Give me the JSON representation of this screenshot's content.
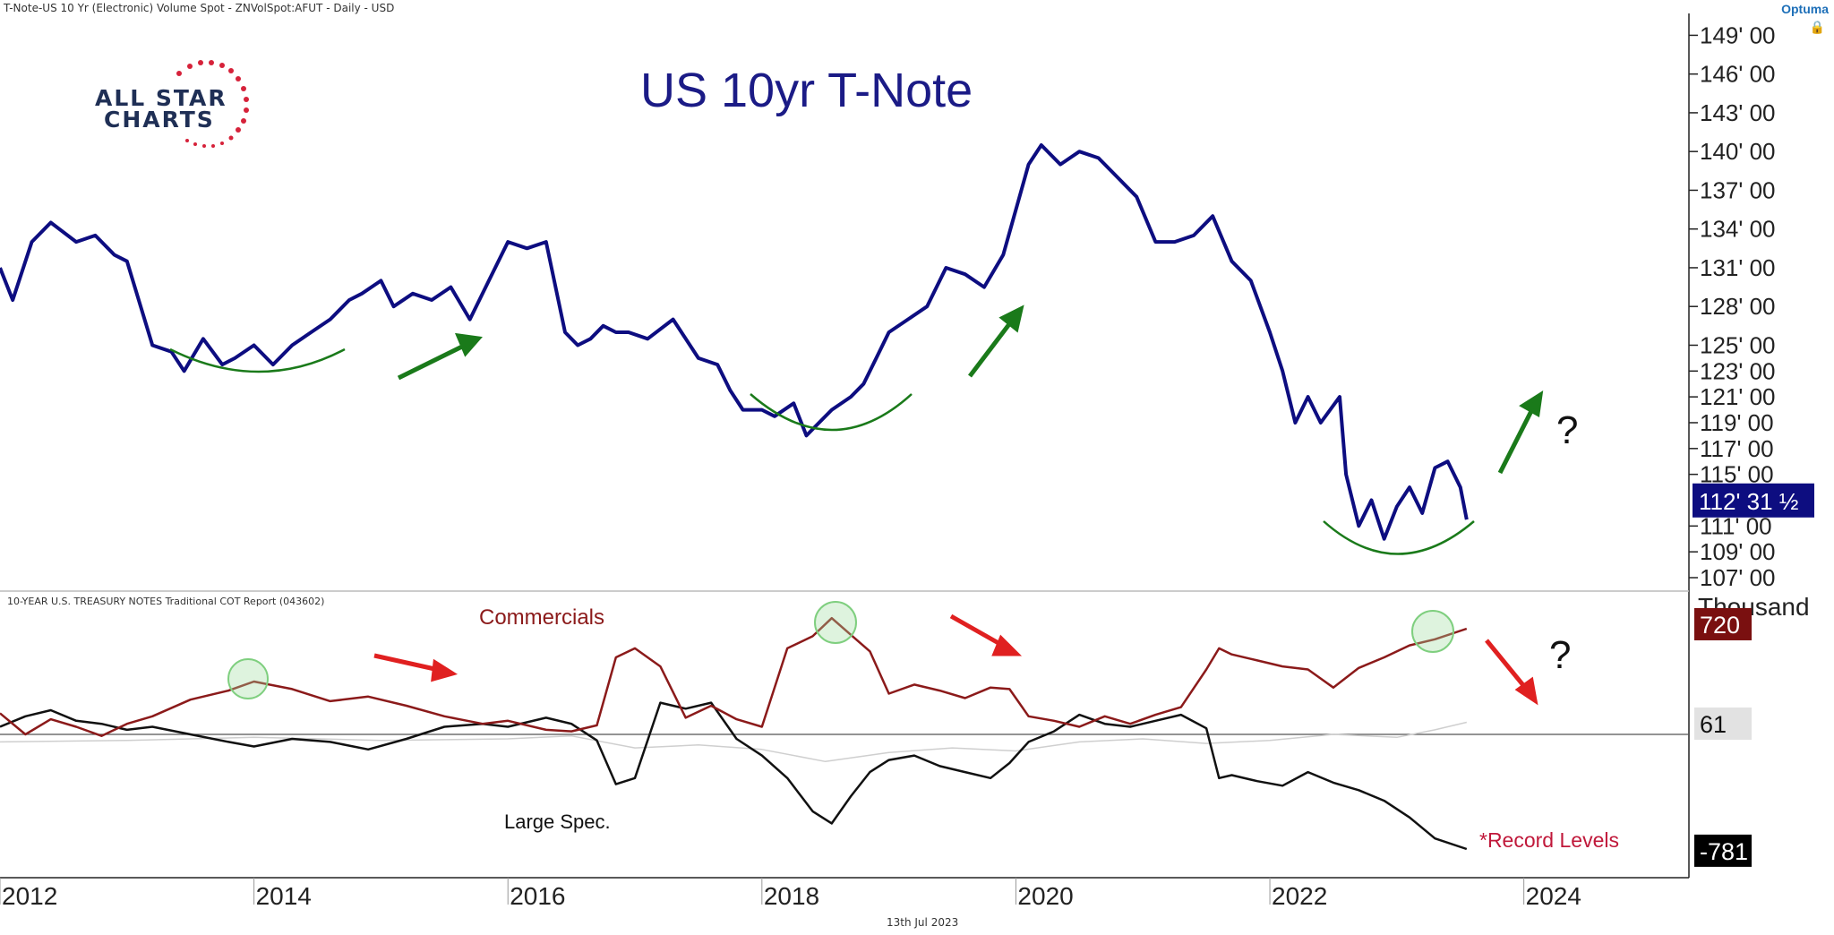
{
  "header": {
    "instrument": "T-Note-US 10 Yr (Electronic) Volume Spot - ZNVolSpot:AFUT - Daily - USD",
    "brand": "Optuma",
    "lock_icon": "lock-icon"
  },
  "logo": {
    "line1": "ALL STAR",
    "line2": "CHARTS"
  },
  "footer": {
    "date": "13th Jul 2023"
  },
  "annotations": {
    "question_top": "?",
    "question_bottom": "?",
    "record_levels": "*Record Levels",
    "commercials": "Commercials",
    "large_spec": "Large Spec."
  },
  "colors": {
    "price_line": "#0d0d80",
    "commercials": "#8b1a1a",
    "large_spec": "#111111",
    "small_traders": "#cfcfcf",
    "green_arrow": "#1a7a1a",
    "red_arrow": "#e02020",
    "highlight_circle": "#7fcf7f"
  },
  "chart_data": [
    {
      "type": "line",
      "title": "US 10yr T-Note",
      "ylim": [
        107,
        150
      ],
      "y_ticks": [
        "149' 00",
        "146' 00",
        "143' 00",
        "140' 00",
        "137' 00",
        "134' 00",
        "131' 00",
        "128' 00",
        "125' 00",
        "123' 00",
        "121' 00",
        "119' 00",
        "117' 00",
        "115' 00",
        "111' 00",
        "109' 00",
        "107' 00"
      ],
      "y_tick_values": [
        149,
        146,
        143,
        140,
        137,
        134,
        131,
        128,
        125,
        123,
        121,
        119,
        117,
        115,
        111,
        109,
        107
      ],
      "last_value_label": "112' 31 ½",
      "last_value": 112.98,
      "series": [
        {
          "x": [
            2012.0,
            2012.1,
            2012.25,
            2012.4,
            2012.6,
            2012.75,
            2012.9,
            2013.0,
            2013.2,
            2013.35,
            2013.45,
            2013.6,
            2013.75,
            2013.85,
            2014.0,
            2014.15,
            2014.3,
            2014.45,
            2014.6,
            2014.75,
            2014.85,
            2015.0,
            2015.1,
            2015.25,
            2015.4,
            2015.55,
            2015.7,
            2015.85,
            2016.0,
            2016.15,
            2016.3,
            2016.45,
            2016.55,
            2016.65,
            2016.75,
            2016.85,
            2016.95,
            2017.1,
            2017.3,
            2017.5,
            2017.65,
            2017.75,
            2017.85,
            2018.0,
            2018.1,
            2018.25,
            2018.35,
            2018.45,
            2018.55,
            2018.7,
            2018.8,
            2018.9,
            2019.0,
            2019.15,
            2019.3,
            2019.45,
            2019.6,
            2019.75,
            2019.9,
            2020.1,
            2020.2,
            2020.35,
            2020.5,
            2020.65,
            2020.8,
            2020.95,
            2021.1,
            2021.25,
            2021.4,
            2021.55,
            2021.7,
            2021.85,
            2022.0,
            2022.1,
            2022.2,
            2022.3,
            2022.4,
            2022.55,
            2022.6,
            2022.7,
            2022.8,
            2022.9,
            2023.0,
            2023.1,
            2023.2,
            2023.3,
            2023.4,
            2023.5,
            2023.55
          ],
          "y": [
            131,
            128.5,
            133,
            134.5,
            133,
            133.5,
            132,
            131.5,
            125,
            124.5,
            123,
            125.5,
            123.5,
            124,
            125,
            123.5,
            125,
            126,
            127,
            128.5,
            129,
            130,
            128,
            129,
            128.5,
            129.5,
            127,
            130,
            133,
            132.5,
            133,
            126,
            125,
            125.5,
            126.5,
            126,
            126,
            125.5,
            127,
            124,
            123.5,
            121.5,
            120,
            120,
            119.5,
            120.5,
            118,
            119,
            120,
            121,
            122,
            124,
            126,
            127,
            128,
            131,
            130.5,
            129.5,
            132,
            139,
            140.5,
            139,
            140,
            139.5,
            138,
            136.5,
            133,
            133,
            133.5,
            135,
            131.5,
            130,
            126,
            123,
            119,
            121,
            119,
            121,
            115,
            111,
            113,
            110,
            112.5,
            114,
            112,
            115.5,
            116,
            114,
            111.5
          ]
        }
      ]
    },
    {
      "type": "line",
      "title": "10-YEAR U.S. TREASURY NOTES Traditional COT Report (043602)",
      "ylabel": "Thousand",
      "y_tick_labels": [
        "720",
        "61",
        "-781"
      ],
      "y_tick_values": [
        720,
        61,
        -781
      ],
      "ylim": [
        -930,
        880
      ],
      "series": [
        {
          "name": "Commercials",
          "x": [
            2012.0,
            2012.2,
            2012.4,
            2012.6,
            2012.8,
            2013.0,
            2013.2,
            2013.5,
            2013.8,
            2014.0,
            2014.3,
            2014.6,
            2014.9,
            2015.2,
            2015.5,
            2015.8,
            2016.0,
            2016.3,
            2016.5,
            2016.7,
            2016.85,
            2017.0,
            2017.2,
            2017.4,
            2017.6,
            2017.8,
            2018.0,
            2018.2,
            2018.4,
            2018.55,
            2018.7,
            2018.85,
            2019.0,
            2019.2,
            2019.4,
            2019.6,
            2019.8,
            2019.95,
            2020.1,
            2020.3,
            2020.5,
            2020.7,
            2020.9,
            2021.1,
            2021.3,
            2021.5,
            2021.6,
            2021.7,
            2021.9,
            2022.1,
            2022.3,
            2022.5,
            2022.7,
            2022.9,
            2023.1,
            2023.3,
            2023.55
          ],
          "y": [
            130,
            -10,
            90,
            40,
            -20,
            60,
            110,
            220,
            280,
            340,
            290,
            210,
            240,
            180,
            110,
            60,
            80,
            20,
            10,
            50,
            500,
            560,
            440,
            100,
            180,
            90,
            40,
            560,
            640,
            760,
            650,
            540,
            260,
            320,
            280,
            230,
            300,
            290,
            110,
            80,
            40,
            110,
            60,
            120,
            170,
            420,
            560,
            520,
            480,
            440,
            420,
            300,
            430,
            500,
            580,
            620,
            690
          ]
        },
        {
          "name": "Large Spec.",
          "x": [
            2012.0,
            2012.2,
            2012.4,
            2012.6,
            2012.8,
            2013.0,
            2013.2,
            2013.5,
            2013.8,
            2014.0,
            2014.3,
            2014.6,
            2014.9,
            2015.2,
            2015.5,
            2015.8,
            2016.0,
            2016.3,
            2016.5,
            2016.7,
            2016.85,
            2017.0,
            2017.2,
            2017.4,
            2017.6,
            2017.8,
            2018.0,
            2018.2,
            2018.4,
            2018.55,
            2018.7,
            2018.85,
            2019.0,
            2019.2,
            2019.4,
            2019.6,
            2019.8,
            2019.95,
            2020.1,
            2020.3,
            2020.5,
            2020.7,
            2020.9,
            2021.1,
            2021.3,
            2021.5,
            2021.6,
            2021.7,
            2021.9,
            2022.1,
            2022.3,
            2022.5,
            2022.7,
            2022.9,
            2023.1,
            2023.3,
            2023.55
          ],
          "y": [
            40,
            110,
            150,
            80,
            60,
            20,
            40,
            -10,
            -60,
            -90,
            -40,
            -60,
            -110,
            -40,
            40,
            60,
            40,
            100,
            60,
            -50,
            -340,
            -300,
            200,
            160,
            200,
            -40,
            -150,
            -300,
            -520,
            -600,
            -420,
            -260,
            -180,
            -150,
            -220,
            -260,
            -300,
            -200,
            -60,
            10,
            120,
            60,
            40,
            80,
            120,
            30,
            -300,
            -280,
            -320,
            -350,
            -260,
            -330,
            -380,
            -450,
            -560,
            -700,
            -770
          ]
        },
        {
          "name": "Small Traders",
          "x": [
            2012.0,
            2013.0,
            2014.0,
            2015.0,
            2016.0,
            2016.5,
            2017.0,
            2017.5,
            2018.0,
            2018.5,
            2019.0,
            2019.5,
            2020.0,
            2020.5,
            2021.0,
            2021.5,
            2022.0,
            2022.5,
            2023.0,
            2023.3,
            2023.55
          ],
          "y": [
            -60,
            -50,
            -30,
            -50,
            -40,
            -20,
            -100,
            -80,
            -110,
            -190,
            -130,
            -100,
            -120,
            -60,
            -40,
            -70,
            -50,
            -10,
            -30,
            20,
            70
          ]
        }
      ]
    }
  ],
  "x_axis": {
    "ticks": [
      "2012",
      "2014",
      "2016",
      "2018",
      "2020",
      "2022",
      "2024"
    ],
    "tick_values": [
      2012,
      2014,
      2016,
      2018,
      2020,
      2022,
      2024
    ],
    "xlim": [
      2012,
      2025.3
    ]
  }
}
